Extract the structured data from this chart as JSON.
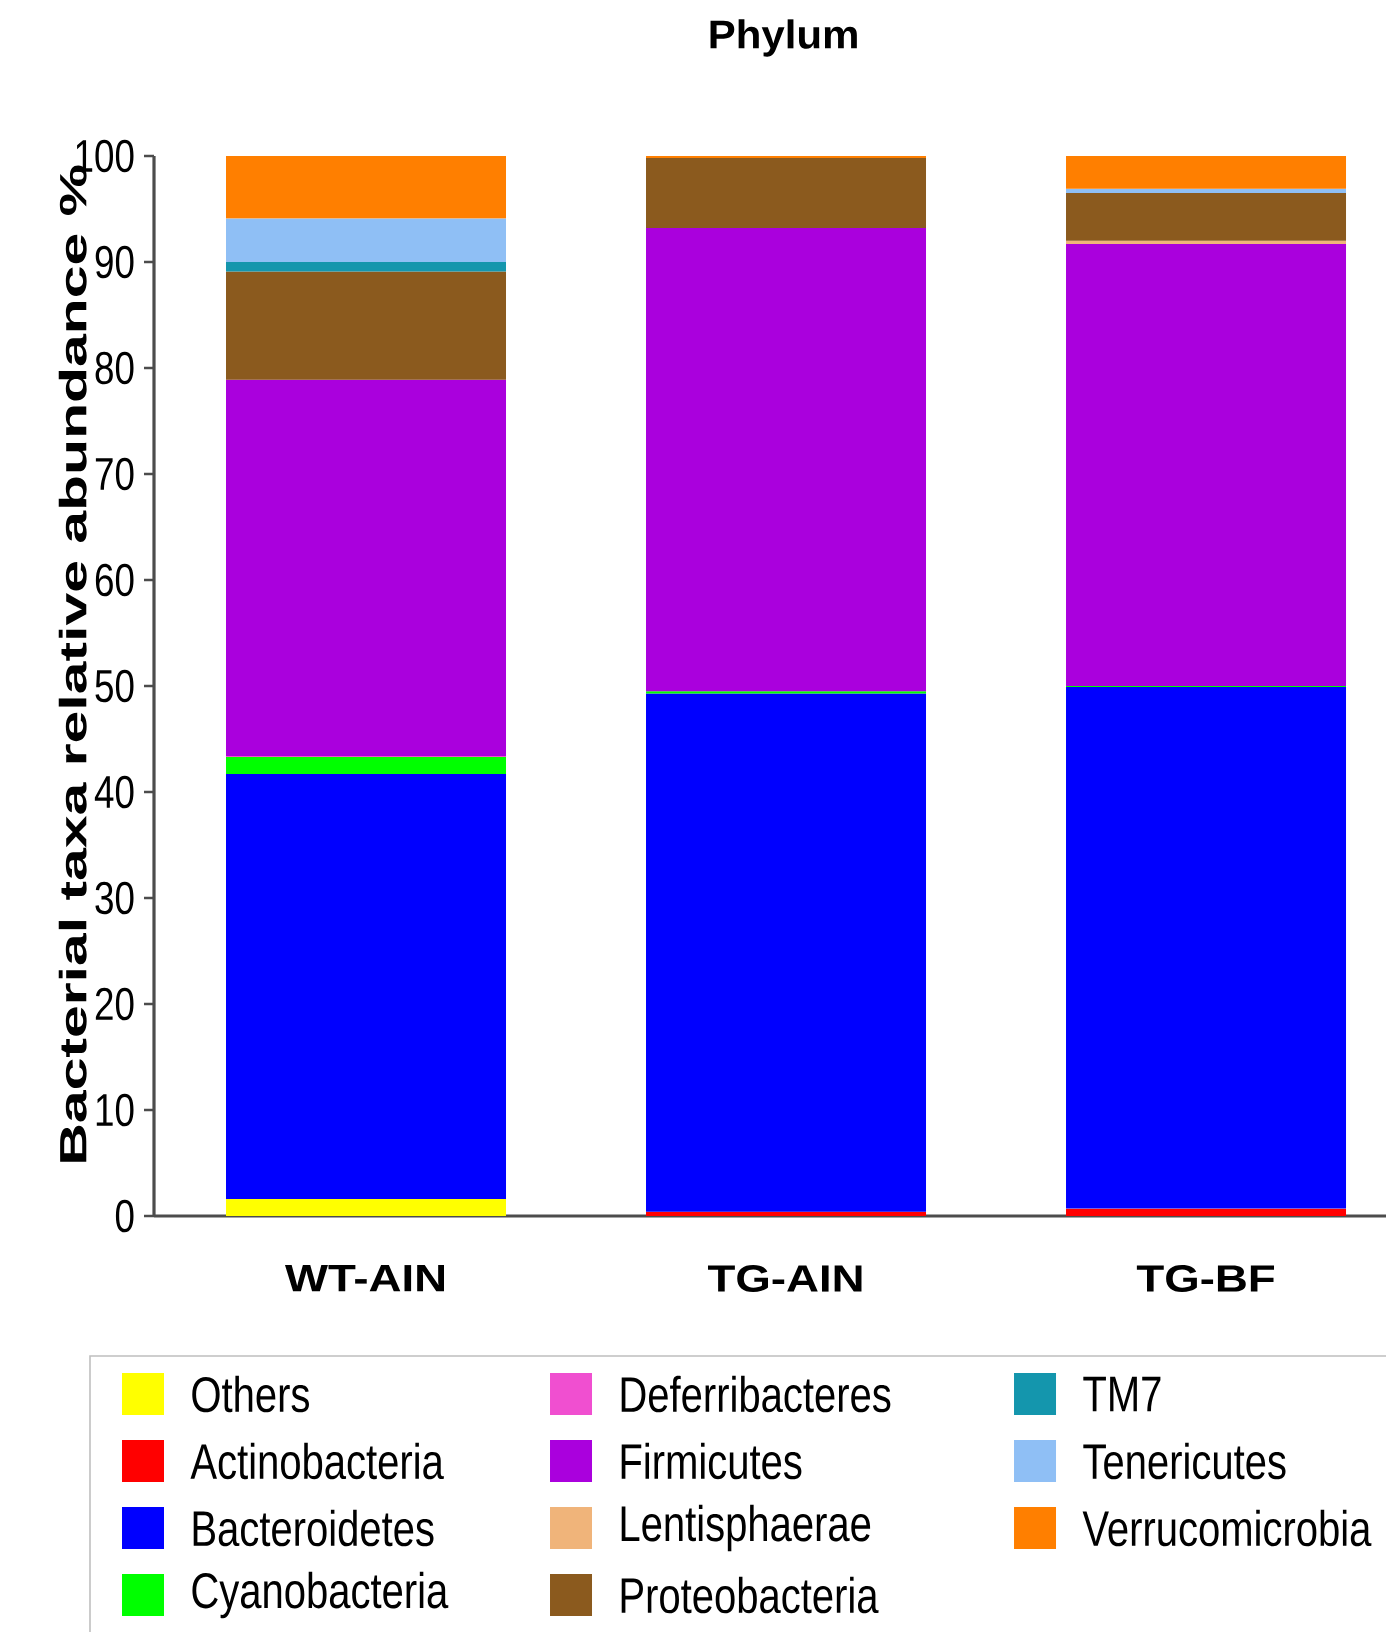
{
  "chart_data": {
    "type": "bar",
    "stacked": true,
    "title": "Phylum",
    "ylabel": "Bacterial taxa relative abundance %",
    "categories": [
      "WT-AIN",
      "TG-AIN",
      "TG-BF"
    ],
    "ylim": [
      0,
      100
    ],
    "yticks": [
      0,
      10,
      20,
      30,
      40,
      50,
      60,
      70,
      80,
      90,
      100
    ],
    "legend": "bottom",
    "series": [
      {
        "name": "Others",
        "color": "#ffff00",
        "values": [
          1.6,
          null,
          null
        ]
      },
      {
        "name": "Actinobacteria",
        "color": "#ff0000",
        "values": [
          null,
          0.4,
          0.7
        ]
      },
      {
        "name": "Bacteroidetes",
        "color": "#0000ff",
        "values": [
          40.1,
          48.9,
          49.2
        ]
      },
      {
        "name": "Cyanobacteria",
        "color": "#00ff00",
        "values": [
          1.6,
          0.2,
          0.1
        ]
      },
      {
        "name": "Deferribacteres",
        "color": "#f04fd0",
        "values": [
          0.1,
          null,
          null
        ]
      },
      {
        "name": "Firmicutes",
        "color": "#aa00dd",
        "values": [
          35.5,
          43.7,
          41.7
        ]
      },
      {
        "name": "Lentisphaerae",
        "color": "#f0b47a",
        "values": [
          null,
          null,
          0.3
        ]
      },
      {
        "name": "Proteobacteria",
        "color": "#8b5a1e",
        "values": [
          10.2,
          6.6,
          4.5
        ]
      },
      {
        "name": "TM7",
        "color": "#1496ad",
        "values": [
          0.9,
          null,
          null
        ]
      },
      {
        "name": "Tenericutes",
        "color": "#8fbff5",
        "values": [
          4.1,
          null,
          0.4
        ]
      },
      {
        "name": "Verrucomicrobia",
        "color": "#ff7f00",
        "values": [
          5.9,
          0.2,
          3.1
        ]
      }
    ]
  }
}
